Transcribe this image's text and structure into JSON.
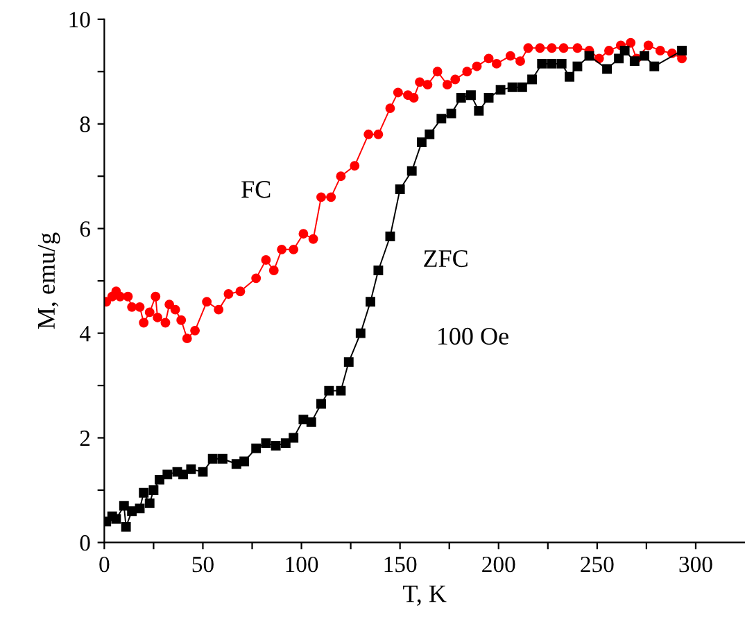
{
  "chart_data": {
    "type": "line",
    "xlabel": "T, K",
    "ylabel": "M, emu/g",
    "xlim": [
      0,
      325
    ],
    "ylim": [
      0,
      10
    ],
    "xticks": [
      0,
      {
        "value": 25,
        "label": null
      },
      50,
      {
        "value": 75,
        "label": null
      },
      100,
      {
        "value": 125,
        "label": null
      },
      150,
      {
        "value": 175,
        "label": null
      },
      200,
      {
        "value": 225,
        "label": null
      },
      250,
      {
        "value": 275,
        "label": null
      },
      300
    ],
    "yticks": [
      0,
      {
        "value": 1,
        "label": null
      },
      2,
      {
        "value": 3,
        "label": null
      },
      4,
      {
        "value": 5,
        "label": null
      },
      6,
      {
        "value": 7,
        "label": null
      },
      8,
      {
        "value": 9,
        "label": null
      },
      10
    ],
    "grid": false,
    "legend": false,
    "line_style": "solid",
    "series": [
      {
        "name": "FC",
        "color": "#ff0000",
        "marker": "circle",
        "x": [
          1,
          4,
          6,
          8,
          12,
          14,
          18,
          20,
          23,
          26,
          27,
          31,
          33,
          36,
          39,
          42,
          46,
          52,
          58,
          63,
          69,
          77,
          82,
          86,
          90,
          96,
          101,
          106,
          110,
          115,
          120,
          127,
          134,
          139,
          145,
          149,
          154,
          157,
          160,
          164,
          169,
          174,
          178,
          184,
          189,
          195,
          199,
          206,
          211,
          215,
          221,
          227,
          233,
          240,
          246,
          251,
          256,
          262,
          267,
          270,
          276,
          282,
          288,
          293
        ],
        "values": [
          4.6,
          4.7,
          4.8,
          4.7,
          4.7,
          4.5,
          4.5,
          4.2,
          4.4,
          4.7,
          4.3,
          4.2,
          4.55,
          4.45,
          4.25,
          3.9,
          4.05,
          4.6,
          4.45,
          4.75,
          4.8,
          5.05,
          5.4,
          5.2,
          5.6,
          5.6,
          5.9,
          5.8,
          6.6,
          6.6,
          7.0,
          7.2,
          7.8,
          7.8,
          8.3,
          8.6,
          8.55,
          8.5,
          8.8,
          8.75,
          9.0,
          8.75,
          8.85,
          9.0,
          9.1,
          9.25,
          9.15,
          9.3,
          9.2,
          9.45,
          9.45,
          9.45,
          9.45,
          9.45,
          9.4,
          9.25,
          9.4,
          9.5,
          9.55,
          9.25,
          9.5,
          9.4,
          9.35,
          9.25
        ]
      },
      {
        "name": "ZFC",
        "color": "#000000",
        "marker": "square",
        "x": [
          1,
          4,
          6,
          10,
          11,
          14,
          18,
          20,
          23,
          25,
          28,
          32,
          37,
          40,
          44,
          50,
          55,
          60,
          67,
          71,
          77,
          82,
          87,
          92,
          96,
          101,
          105,
          110,
          114,
          120,
          124,
          130,
          135,
          139,
          145,
          150,
          156,
          161,
          165,
          171,
          176,
          181,
          186,
          190,
          195,
          201,
          207,
          212,
          217,
          222,
          227,
          232,
          236,
          240,
          246,
          255,
          261,
          264,
          269,
          274,
          279,
          293
        ],
        "values": [
          0.4,
          0.5,
          0.45,
          0.7,
          0.3,
          0.6,
          0.65,
          0.95,
          0.75,
          1.0,
          1.2,
          1.3,
          1.35,
          1.3,
          1.4,
          1.35,
          1.6,
          1.6,
          1.5,
          1.55,
          1.8,
          1.9,
          1.85,
          1.9,
          2.0,
          2.35,
          2.3,
          2.65,
          2.9,
          2.9,
          3.45,
          4.0,
          4.6,
          5.2,
          5.85,
          6.75,
          7.1,
          7.65,
          7.8,
          8.1,
          8.2,
          8.5,
          8.55,
          8.25,
          8.5,
          8.65,
          8.7,
          8.7,
          8.85,
          9.15,
          9.15,
          9.15,
          8.9,
          9.1,
          9.3,
          9.05,
          9.25,
          9.4,
          9.2,
          9.3,
          9.1,
          9.4
        ]
      }
    ],
    "annotations": [
      "100 Oe"
    ]
  }
}
